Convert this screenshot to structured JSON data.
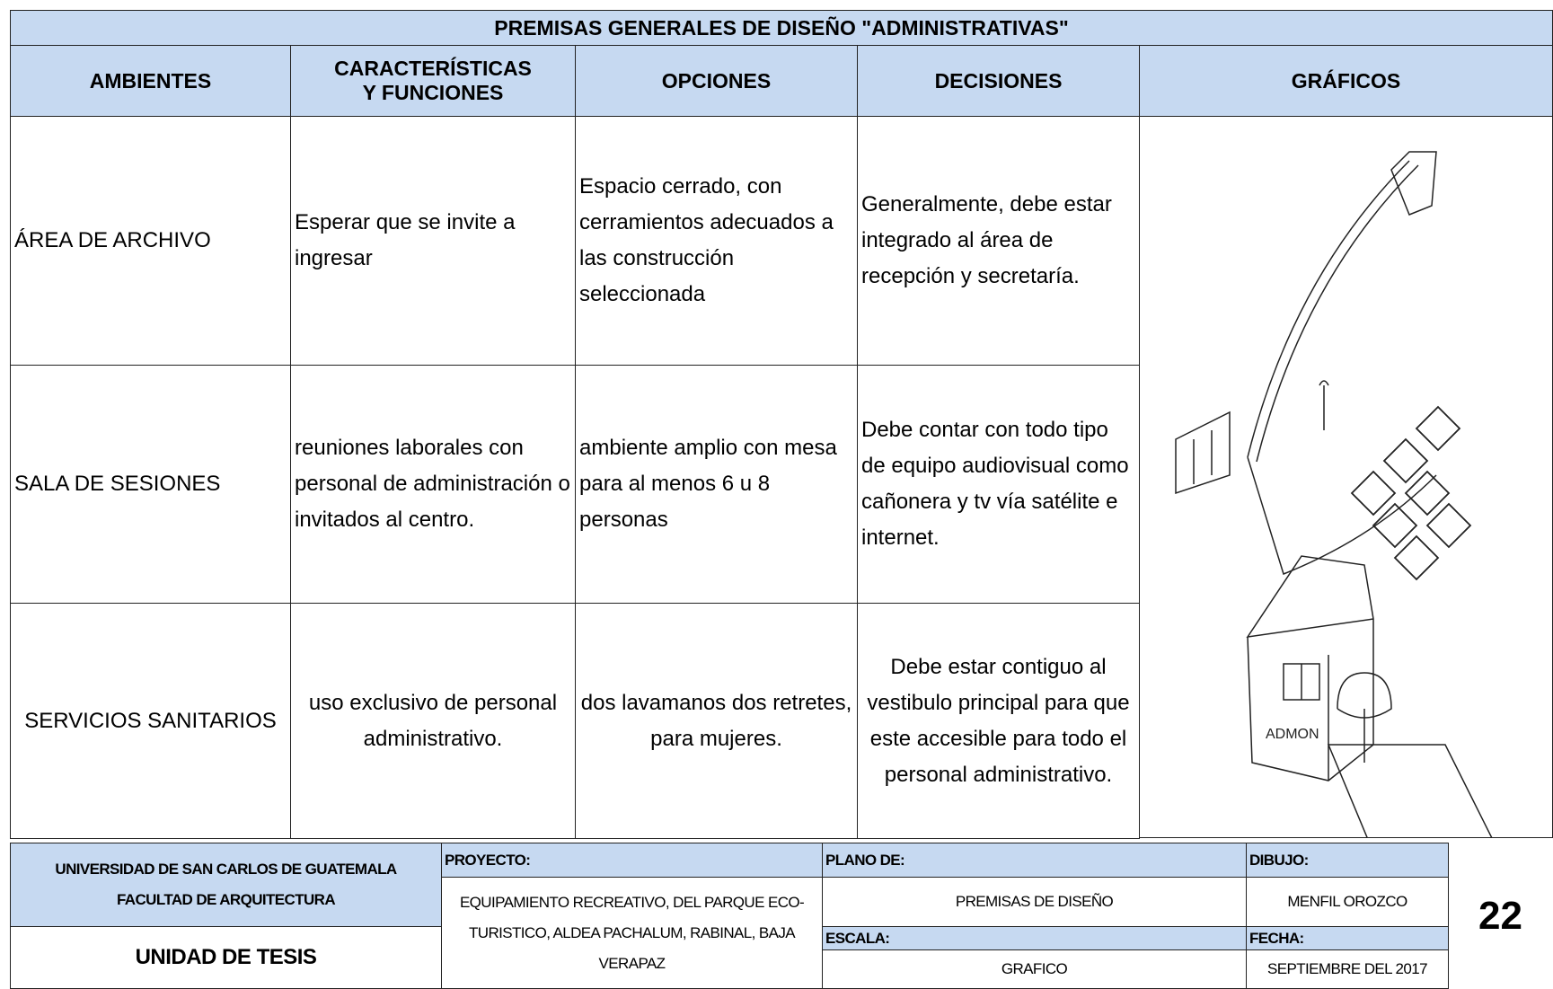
{
  "title": "PREMISAS GENERALES DE DISEÑO \"ADMINISTRATIVAS\"",
  "table": {
    "headers": [
      "AMBIENTES",
      "CARACTERÍSTICAS Y FUNCIONES",
      "OPCIONES",
      "DECISIONES",
      "GRÁFICOS"
    ],
    "rows": [
      [
        "ÁREA DE ARCHIVO",
        "Esperar  que se invite a ingresar",
        "Espacio cerrado, con cerramientos adecuados a las construcción seleccionada",
        "Generalmente, debe estar integrado al área de recepción y secretaría."
      ],
      [
        "SALA DE SESIONES",
        "reuniones laborales con personal de administración o invitados al centro.",
        "ambiente amplio con mesa para al menos 6 u 8 personas",
        "Debe contar con todo tipo de equipo audiovisual como cañonera y tv vía satélite e internet."
      ],
      [
        "SERVICIOS SANITARIOS",
        "uso exclusivo de personal administrativo.",
        "dos lavamanos dos retretes,  para mujeres.",
        "Debe estar contiguo al vestibulo principal para que este accesible para todo el personal administrativo."
      ]
    ]
  },
  "footer": {
    "university": "UNIVERSIDAD DE SAN CARLOS DE GUATEMALA",
    "faculty": "FACULTAD DE ARQUITECTURA",
    "unit": "UNIDAD DE TESIS",
    "project_label": "PROYECTO:",
    "project": "EQUIPAMIENTO RECREATIVO, DEL PARQUE ECO-TURISTICO, ALDEA PACHALUM, RABINAL, BAJA VERAPAZ",
    "plan_label": "PLANO DE:",
    "plan": "PREMISAS DE DISEÑO",
    "scale_label": "ESCALA:",
    "scale": "GRAFICO",
    "drawing_label": "DIBUJO:",
    "drawing": "MENFIL OROZCO",
    "date_label": "FECHA:",
    "date": "SEPTIEMBRE DEL 2017",
    "page": "22"
  }
}
